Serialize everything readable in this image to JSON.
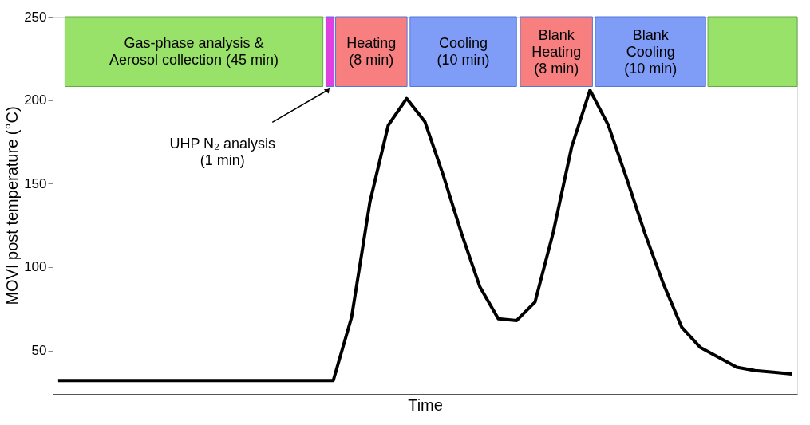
{
  "chart_data": {
    "type": "line",
    "xlabel": "Time",
    "ylabel": "MOVI post temperature (°C)",
    "categories": [
      null,
      null,
      null,
      null,
      null,
      null,
      null,
      null,
      null,
      null,
      null,
      null,
      null,
      null,
      null,
      null,
      null,
      null,
      null,
      null,
      null,
      null,
      null,
      null,
      null,
      null,
      null,
      null,
      null,
      null,
      null,
      null,
      null,
      null,
      null,
      null,
      null,
      null,
      null,
      null,
      null
    ],
    "series": [
      {
        "color": "#000000",
        "values": [
          32,
          32,
          32,
          32,
          32,
          32,
          32,
          32,
          32,
          32,
          32,
          32,
          32,
          32,
          32,
          32,
          70,
          139,
          185,
          201,
          187,
          155,
          120,
          88,
          69,
          68,
          79,
          121,
          172,
          206,
          185,
          153,
          120,
          90,
          64,
          52,
          46,
          40,
          38,
          37,
          36
        ]
      }
    ],
    "ylim": [
      24,
      250
    ],
    "yticks": [
      50,
      100,
      150,
      200,
      250
    ],
    "tick_labels": "y",
    "grid": false,
    "marker": "none",
    "line_style": "solid",
    "annotations": [
      "Gas-phase analysis &\nAerosol collection (45 min)",
      "Heating\n(8 min)",
      "Cooling\n(10 min)",
      "Blank\nHeating\n(8 min)",
      "Blank\nCooling\n(10 min)",
      "UHP N₂ analysis\n(1 min)"
    ]
  }
}
